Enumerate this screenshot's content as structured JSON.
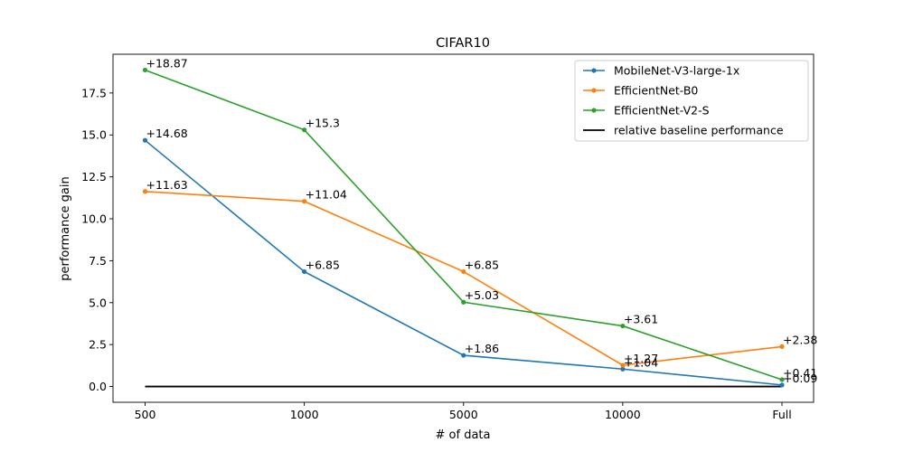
{
  "chart_data": {
    "type": "line",
    "title": "CIFAR10",
    "xlabel": "# of data",
    "ylabel": "performance gain",
    "categories": [
      "500",
      "1000",
      "5000",
      "10000",
      "Full"
    ],
    "ylim": [
      -0.94,
      19.81
    ],
    "yticks": [
      0.0,
      2.5,
      5.0,
      7.5,
      10.0,
      12.5,
      15.0,
      17.5
    ],
    "ytick_labels": [
      "0.0",
      "2.5",
      "5.0",
      "7.5",
      "10.0",
      "12.5",
      "15.0",
      "17.5"
    ],
    "grid": false,
    "legend_position": "top-right",
    "series": [
      {
        "name": "MobileNet-V3-large-1x",
        "color": "#1f77b4",
        "values": [
          14.68,
          6.85,
          1.86,
          1.04,
          0.09
        ],
        "labels": [
          "+14.68",
          "+6.85",
          "+1.86",
          "+1.04",
          "+0.09"
        ]
      },
      {
        "name": "EfficientNet-B0",
        "color": "#ff7f0e",
        "values": [
          11.63,
          11.04,
          6.85,
          1.27,
          2.38
        ],
        "labels": [
          "+11.63",
          "+11.04",
          "+6.85",
          "+1.27",
          "+2.38"
        ]
      },
      {
        "name": "EfficientNet-V2-S",
        "color": "#2ca02c",
        "values": [
          18.87,
          15.3,
          5.03,
          3.61,
          0.41
        ],
        "labels": [
          "+18.87",
          "+15.3",
          "+5.03",
          "+3.61",
          "+0.41"
        ]
      }
    ],
    "baseline": {
      "name": "relative baseline performance",
      "color": "#000000",
      "value": 0
    }
  }
}
